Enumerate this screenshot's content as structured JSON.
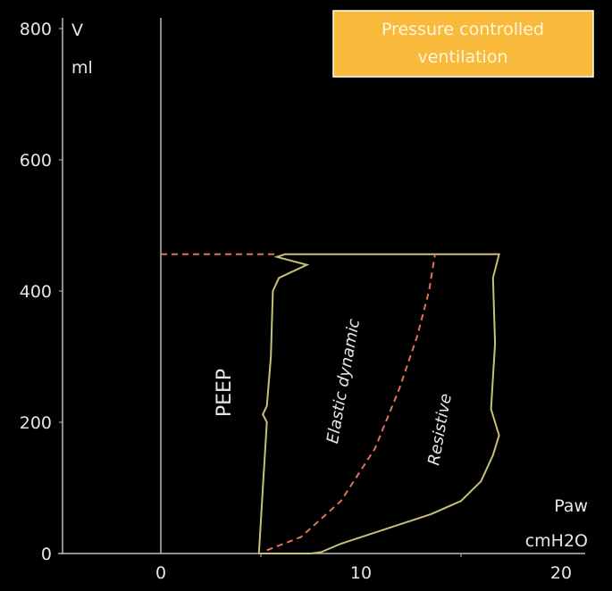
{
  "chart_data": {
    "type": "line",
    "title": "Pressure controlled ventilation",
    "title_lines": [
      "Pressure controlled",
      "ventilation"
    ],
    "title_box_color": "#f9b93b",
    "ylabel": "V",
    "yunit": "ml",
    "xlabel": "Paw",
    "xunit": "cmH2O",
    "xlim": [
      -5.1,
      21.2
    ],
    "ylim": [
      0,
      800
    ],
    "xticks": [
      0,
      10,
      20
    ],
    "yticks": [
      0,
      200,
      400,
      600,
      800
    ],
    "grid": false,
    "annotations": [
      "PEEP",
      "Elastic dynamic",
      "Resistive"
    ],
    "series": [
      {
        "style": "solid",
        "color": "#c9c078",
        "points": [
          [
            4.9,
            0
          ],
          [
            5.1,
            100
          ],
          [
            5.3,
            200
          ],
          [
            5.1,
            212
          ],
          [
            5.3,
            225
          ],
          [
            5.5,
            300
          ],
          [
            5.6,
            400
          ],
          [
            5.9,
            420
          ],
          [
            7.3,
            440
          ],
          [
            5.8,
            452
          ],
          [
            6.2,
            456
          ],
          [
            16.9,
            456
          ],
          [
            16.6,
            420
          ],
          [
            16.7,
            320
          ],
          [
            16.5,
            220
          ],
          [
            16.9,
            180
          ],
          [
            16.6,
            150
          ],
          [
            16.0,
            110
          ],
          [
            15.0,
            80
          ],
          [
            13.5,
            60
          ],
          [
            11.0,
            35
          ],
          [
            9.0,
            15
          ],
          [
            8.0,
            2
          ],
          [
            7.5,
            0
          ],
          [
            4.9,
            0
          ]
        ]
      },
      {
        "style": "dashed",
        "color": "#e0735a",
        "points": [
          [
            0,
            456
          ],
          [
            5.8,
            456
          ]
        ]
      },
      {
        "style": "dashed",
        "color": "#e0735a",
        "points": [
          [
            5.3,
            5
          ],
          [
            7,
            25
          ],
          [
            9,
            80
          ],
          [
            10.7,
            160
          ],
          [
            11.9,
            250
          ],
          [
            12.8,
            330
          ],
          [
            13.4,
            400
          ],
          [
            13.7,
            456
          ]
        ]
      }
    ]
  }
}
